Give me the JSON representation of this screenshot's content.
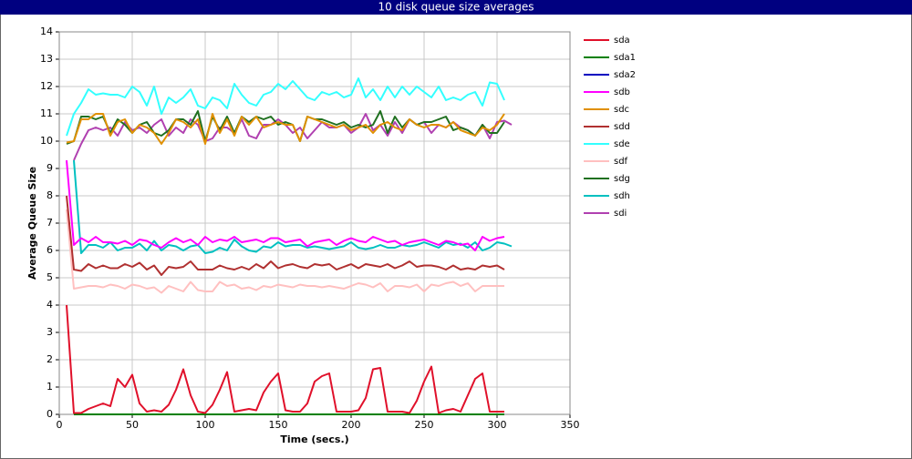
{
  "chart_data": {
    "type": "line",
    "title": "10 disk queue size averages",
    "x_label": "Time (secs.)",
    "y_label": "Average Queue Size",
    "x": [
      5,
      10,
      15,
      20,
      25,
      30,
      35,
      40,
      45,
      50,
      55,
      60,
      65,
      70,
      75,
      80,
      85,
      90,
      95,
      100,
      105,
      110,
      115,
      120,
      125,
      130,
      135,
      140,
      145,
      150,
      155,
      160,
      165,
      170,
      175,
      180,
      185,
      190,
      195,
      200,
      205,
      210,
      215,
      220,
      225,
      230,
      235,
      240,
      245,
      250,
      255,
      260,
      265,
      270,
      275,
      280,
      285,
      290,
      295,
      300,
      305,
      310
    ],
    "xlim": [
      0,
      350
    ],
    "xticks": [
      0,
      50,
      100,
      150,
      200,
      250,
      300,
      350
    ],
    "ylim": [
      0,
      14
    ],
    "yticks": [
      0,
      1,
      2,
      3,
      4,
      5,
      6,
      7,
      8,
      9,
      10,
      11,
      12,
      13,
      14
    ],
    "grid": true,
    "series": [
      {
        "name": "sda",
        "color": "#e0102a",
        "values": [
          4.0,
          0.05,
          0.05,
          0.2,
          0.3,
          0.4,
          0.3,
          1.3,
          1.0,
          1.45,
          0.4,
          0.1,
          0.15,
          0.1,
          0.35,
          0.9,
          1.65,
          0.7,
          0.1,
          0.05,
          0.35,
          0.9,
          1.55,
          0.1,
          0.15,
          0.2,
          0.15,
          0.8,
          1.2,
          1.5,
          0.15,
          0.1,
          0.1,
          0.4,
          1.2,
          1.4,
          1.5,
          0.1,
          0.1,
          0.1,
          0.15,
          0.6,
          1.65,
          1.7,
          0.1,
          0.1,
          0.1,
          0.05,
          0.5,
          1.2,
          1.75,
          0.05,
          0.15,
          0.2,
          0.1,
          0.7,
          1.3,
          1.5,
          0.1,
          0.1,
          0.1,
          null
        ]
      },
      {
        "name": "sda1",
        "color": "#008000",
        "values": [
          null,
          0,
          0,
          0,
          0,
          0,
          0,
          0,
          0,
          0,
          0,
          0,
          0,
          0,
          0,
          0,
          0,
          0,
          0,
          0,
          0,
          0,
          0,
          0,
          0,
          0,
          0,
          0,
          0,
          0,
          0,
          0,
          0,
          0,
          0,
          0,
          0,
          0,
          0,
          0,
          0,
          0,
          0,
          0,
          0,
          0,
          0,
          0,
          0,
          0,
          0,
          0,
          0,
          0,
          0,
          0,
          0,
          0,
          0,
          0,
          0,
          null
        ]
      },
      {
        "name": "sda2",
        "color": "#0000c0",
        "values": [
          null,
          0,
          0,
          0,
          0,
          0,
          0,
          0,
          0,
          0,
          0,
          0,
          0,
          0,
          0,
          0,
          0,
          0,
          0,
          0,
          0,
          0,
          0,
          0,
          0,
          0,
          0,
          0,
          0,
          0,
          0,
          0,
          0,
          0,
          0,
          0,
          0,
          0,
          0,
          0,
          0,
          0,
          0,
          0,
          0,
          0,
          0,
          0,
          0,
          0,
          0,
          0,
          0,
          0,
          0,
          0,
          0,
          0,
          0,
          0,
          0,
          null
        ]
      },
      {
        "name": "sdb",
        "color": "#ff00ff",
        "values": [
          9.3,
          6.2,
          6.45,
          6.3,
          6.5,
          6.3,
          6.3,
          6.25,
          6.35,
          6.2,
          6.4,
          6.35,
          6.2,
          6.1,
          6.3,
          6.45,
          6.3,
          6.4,
          6.2,
          6.5,
          6.3,
          6.4,
          6.35,
          6.5,
          6.3,
          6.35,
          6.4,
          6.3,
          6.45,
          6.45,
          6.3,
          6.35,
          6.4,
          6.15,
          6.3,
          6.35,
          6.4,
          6.2,
          6.35,
          6.45,
          6.35,
          6.3,
          6.5,
          6.4,
          6.3,
          6.35,
          6.2,
          6.3,
          6.35,
          6.4,
          6.3,
          6.2,
          6.35,
          6.3,
          6.2,
          6.25,
          6.0,
          6.5,
          6.35,
          6.45,
          6.5,
          null
        ]
      },
      {
        "name": "sdc",
        "color": "#e09000",
        "values": [
          9.95,
          10.0,
          10.8,
          10.8,
          11.0,
          11.0,
          10.2,
          10.7,
          10.8,
          10.3,
          10.6,
          10.5,
          10.3,
          9.9,
          10.3,
          10.8,
          10.7,
          10.5,
          10.8,
          9.9,
          11.0,
          10.3,
          10.8,
          10.2,
          10.9,
          10.6,
          10.9,
          10.5,
          10.6,
          10.7,
          10.6,
          10.6,
          10.0,
          10.9,
          10.8,
          10.7,
          10.6,
          10.5,
          10.6,
          10.4,
          10.5,
          10.6,
          10.3,
          10.6,
          10.7,
          10.5,
          10.4,
          10.8,
          10.6,
          10.5,
          10.6,
          10.6,
          10.5,
          10.7,
          10.4,
          10.3,
          10.2,
          10.5,
          10.4,
          10.6,
          11.0,
          null
        ]
      },
      {
        "name": "sdd",
        "color": "#b03030",
        "values": [
          8.0,
          5.3,
          5.25,
          5.5,
          5.35,
          5.45,
          5.35,
          5.35,
          5.5,
          5.4,
          5.55,
          5.3,
          5.45,
          5.1,
          5.4,
          5.35,
          5.4,
          5.6,
          5.3,
          5.3,
          5.3,
          5.45,
          5.35,
          5.3,
          5.4,
          5.3,
          5.5,
          5.35,
          5.6,
          5.35,
          5.45,
          5.5,
          5.4,
          5.35,
          5.5,
          5.45,
          5.5,
          5.3,
          5.4,
          5.5,
          5.35,
          5.5,
          5.45,
          5.4,
          5.5,
          5.35,
          5.45,
          5.6,
          5.4,
          5.45,
          5.45,
          5.4,
          5.3,
          5.45,
          5.3,
          5.35,
          5.3,
          5.45,
          5.4,
          5.45,
          5.3,
          null
        ]
      },
      {
        "name": "sde",
        "color": "#33ffff",
        "values": [
          10.2,
          11.0,
          11.4,
          11.9,
          11.7,
          11.75,
          11.7,
          11.7,
          11.6,
          12.0,
          11.8,
          11.3,
          12.0,
          11.0,
          11.6,
          11.4,
          11.6,
          11.9,
          11.3,
          11.2,
          11.6,
          11.5,
          11.2,
          12.1,
          11.7,
          11.4,
          11.3,
          11.7,
          11.8,
          12.1,
          11.9,
          12.2,
          11.9,
          11.6,
          11.5,
          11.8,
          11.7,
          11.8,
          11.6,
          11.7,
          12.3,
          11.6,
          11.9,
          11.5,
          12.0,
          11.6,
          12.0,
          11.7,
          12.0,
          11.8,
          11.6,
          12.0,
          11.5,
          11.6,
          11.5,
          11.7,
          11.8,
          11.3,
          12.15,
          12.1,
          11.5,
          null
        ]
      },
      {
        "name": "sdf",
        "color": "#ffc0c0",
        "values": [
          7.5,
          4.6,
          4.65,
          4.7,
          4.7,
          4.65,
          4.75,
          4.7,
          4.6,
          4.75,
          4.7,
          4.6,
          4.65,
          4.45,
          4.7,
          4.6,
          4.5,
          4.85,
          4.55,
          4.5,
          4.5,
          4.85,
          4.7,
          4.75,
          4.6,
          4.65,
          4.55,
          4.7,
          4.65,
          4.75,
          4.7,
          4.65,
          4.75,
          4.7,
          4.7,
          4.65,
          4.7,
          4.65,
          4.6,
          4.7,
          4.8,
          4.75,
          4.65,
          4.8,
          4.5,
          4.7,
          4.7,
          4.65,
          4.75,
          4.5,
          4.75,
          4.7,
          4.8,
          4.85,
          4.7,
          4.8,
          4.5,
          4.7,
          4.7,
          4.7,
          4.7,
          null
        ]
      },
      {
        "name": "sdg",
        "color": "#207020",
        "values": [
          9.9,
          10.0,
          10.9,
          10.9,
          10.8,
          10.9,
          10.3,
          10.8,
          10.6,
          10.3,
          10.6,
          10.7,
          10.3,
          10.2,
          10.4,
          10.8,
          10.8,
          10.6,
          11.1,
          10.0,
          10.9,
          10.4,
          10.9,
          10.3,
          10.9,
          10.7,
          10.9,
          10.8,
          10.9,
          10.6,
          10.7,
          10.6,
          10.0,
          10.9,
          10.8,
          10.8,
          10.7,
          10.6,
          10.7,
          10.5,
          10.6,
          10.5,
          10.6,
          11.1,
          10.3,
          10.9,
          10.5,
          10.8,
          10.6,
          10.7,
          10.7,
          10.8,
          10.9,
          10.4,
          10.5,
          10.4,
          10.2,
          10.6,
          10.3,
          10.3,
          10.7,
          null
        ]
      },
      {
        "name": "sdh",
        "color": "#00c0c0",
        "values": [
          null,
          9.3,
          5.9,
          6.2,
          6.2,
          6.1,
          6.3,
          6.0,
          6.1,
          6.1,
          6.25,
          6.0,
          6.35,
          6.0,
          6.2,
          6.15,
          6.0,
          6.15,
          6.2,
          5.9,
          5.95,
          6.1,
          6.0,
          6.4,
          6.15,
          6.0,
          5.95,
          6.15,
          6.1,
          6.3,
          6.15,
          6.2,
          6.2,
          6.1,
          6.15,
          6.1,
          6.05,
          6.1,
          6.15,
          6.3,
          6.1,
          6.05,
          6.1,
          6.2,
          6.1,
          6.1,
          6.2,
          6.15,
          6.2,
          6.3,
          6.2,
          6.1,
          6.3,
          6.2,
          6.25,
          6.1,
          6.3,
          6.0,
          6.1,
          6.3,
          6.25,
          6.15
        ]
      },
      {
        "name": "sdi",
        "color": "#b040b0",
        "values": [
          null,
          9.3,
          9.9,
          10.4,
          10.5,
          10.4,
          10.5,
          10.2,
          10.7,
          10.4,
          10.5,
          10.3,
          10.6,
          10.8,
          10.2,
          10.5,
          10.3,
          10.8,
          10.6,
          10.0,
          10.1,
          10.5,
          10.5,
          10.3,
          10.8,
          10.2,
          10.1,
          10.6,
          10.6,
          10.8,
          10.6,
          10.3,
          10.5,
          10.1,
          10.4,
          10.7,
          10.5,
          10.5,
          10.6,
          10.3,
          10.5,
          11.0,
          10.4,
          10.6,
          10.2,
          10.7,
          10.3,
          10.8,
          10.6,
          10.7,
          10.3,
          10.6,
          10.5,
          10.7,
          10.5,
          10.4,
          10.2,
          10.6,
          10.1,
          10.7,
          10.75,
          10.6
        ]
      }
    ]
  }
}
